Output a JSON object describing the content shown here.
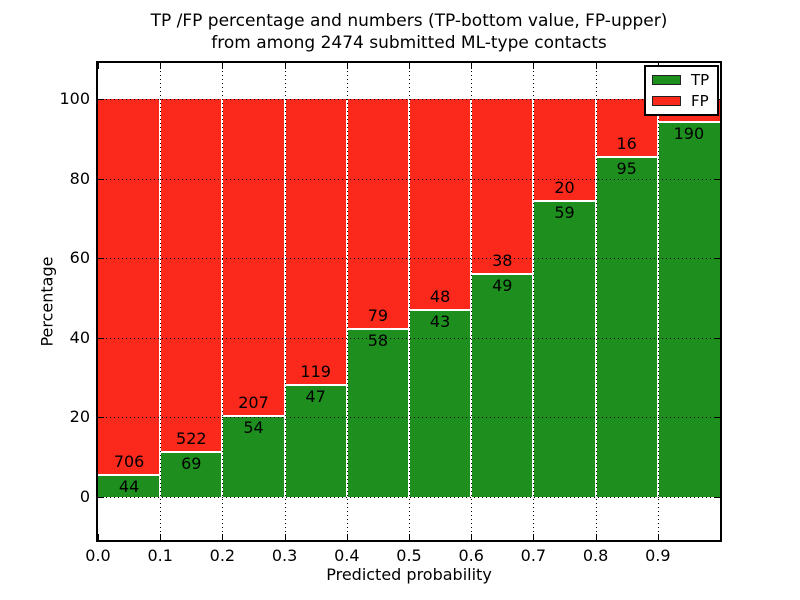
{
  "title": {
    "line1": "TP /FP percentage and numbers (TP-bottom value, FP-upper)",
    "line2": "from among 2474 submitted ML-type contacts"
  },
  "axes": {
    "xlabel": "Predicted probability",
    "ylabel": "Percentage",
    "x_tick_labels": [
      "0.0",
      "0.1",
      "0.2",
      "0.3",
      "0.4",
      "0.5",
      "0.6",
      "0.7",
      "0.8",
      "0.9"
    ],
    "y_tick_labels": [
      "0",
      "20",
      "40",
      "60",
      "80",
      "100"
    ]
  },
  "legend": {
    "position": "upper right",
    "entries": [
      {
        "label": "TP",
        "color": "#1e8e1e"
      },
      {
        "label": "FP",
        "color": "#fa291c"
      }
    ]
  },
  "chart_data": {
    "type": "bar",
    "subtype": "stacked-percentage",
    "title": "TP /FP percentage and numbers (TP-bottom value, FP-upper) from among 2474 submitted ML-type contacts",
    "xlabel": "Predicted probability",
    "ylabel": "Percentage",
    "xlim": [
      0.0,
      1.0
    ],
    "ylim": [
      -11,
      109
    ],
    "x_ticks": [
      0.0,
      0.1,
      0.2,
      0.3,
      0.4,
      0.5,
      0.6,
      0.7,
      0.8,
      0.9
    ],
    "y_ticks": [
      0,
      20,
      40,
      60,
      80,
      100
    ],
    "grid": "dotted",
    "legend_position": "upper right",
    "total_contacts": 2474,
    "bin_width": 0.1,
    "series_names": [
      "TP",
      "FP"
    ],
    "bins": [
      {
        "x_start": 0.0,
        "tp": 44,
        "fp": 706,
        "tp_pct": 5.87
      },
      {
        "x_start": 0.1,
        "tp": 69,
        "fp": 522,
        "tp_pct": 11.68
      },
      {
        "x_start": 0.2,
        "tp": 54,
        "fp": 207,
        "tp_pct": 20.69
      },
      {
        "x_start": 0.3,
        "tp": 47,
        "fp": 119,
        "tp_pct": 28.31
      },
      {
        "x_start": 0.4,
        "tp": 58,
        "fp": 79,
        "tp_pct": 42.34
      },
      {
        "x_start": 0.5,
        "tp": 43,
        "fp": 48,
        "tp_pct": 47.25
      },
      {
        "x_start": 0.6,
        "tp": 49,
        "fp": 38,
        "tp_pct": 56.32
      },
      {
        "x_start": 0.7,
        "tp": 59,
        "fp": 20,
        "tp_pct": 74.68
      },
      {
        "x_start": 0.8,
        "tp": 95,
        "fp": 16,
        "tp_pct": 85.59
      },
      {
        "x_start": 0.9,
        "tp": 190,
        "fp": null,
        "tp_pct": 94.53
      }
    ]
  }
}
